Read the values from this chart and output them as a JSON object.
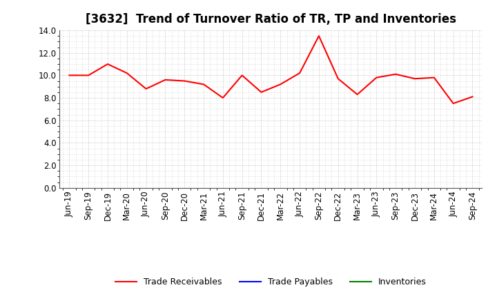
{
  "title": "[3632]  Trend of Turnover Ratio of TR, TP and Inventories",
  "x_labels": [
    "Jun-19",
    "Sep-19",
    "Dec-19",
    "Mar-20",
    "Jun-20",
    "Sep-20",
    "Dec-20",
    "Mar-21",
    "Jun-21",
    "Sep-21",
    "Dec-21",
    "Mar-22",
    "Jun-22",
    "Sep-22",
    "Dec-22",
    "Mar-23",
    "Jun-23",
    "Sep-23",
    "Dec-23",
    "Mar-24",
    "Jun-24",
    "Sep-24"
  ],
  "trade_receivables": [
    10.0,
    10.0,
    11.0,
    10.2,
    8.8,
    9.6,
    9.5,
    9.2,
    8.0,
    10.0,
    8.5,
    9.2,
    10.2,
    13.5,
    9.7,
    8.3,
    9.8,
    10.1,
    9.7,
    9.8,
    7.5,
    8.1
  ],
  "trade_payables": [
    null,
    null,
    null,
    null,
    null,
    null,
    null,
    null,
    null,
    null,
    null,
    null,
    null,
    null,
    null,
    null,
    null,
    null,
    null,
    null,
    null,
    null
  ],
  "inventories": [
    null,
    null,
    null,
    null,
    null,
    null,
    null,
    null,
    null,
    null,
    null,
    null,
    null,
    null,
    null,
    null,
    null,
    null,
    null,
    null,
    null,
    null
  ],
  "tr_color": "#FF0000",
  "tp_color": "#0000FF",
  "inv_color": "#008000",
  "ylim": [
    0.0,
    14.0
  ],
  "yticks": [
    0.0,
    2.0,
    4.0,
    6.0,
    8.0,
    10.0,
    12.0,
    14.0
  ],
  "background_color": "#FFFFFF",
  "grid_color": "#999999",
  "legend_labels": [
    "Trade Receivables",
    "Trade Payables",
    "Inventories"
  ],
  "title_fontsize": 12,
  "tick_fontsize": 8.5
}
